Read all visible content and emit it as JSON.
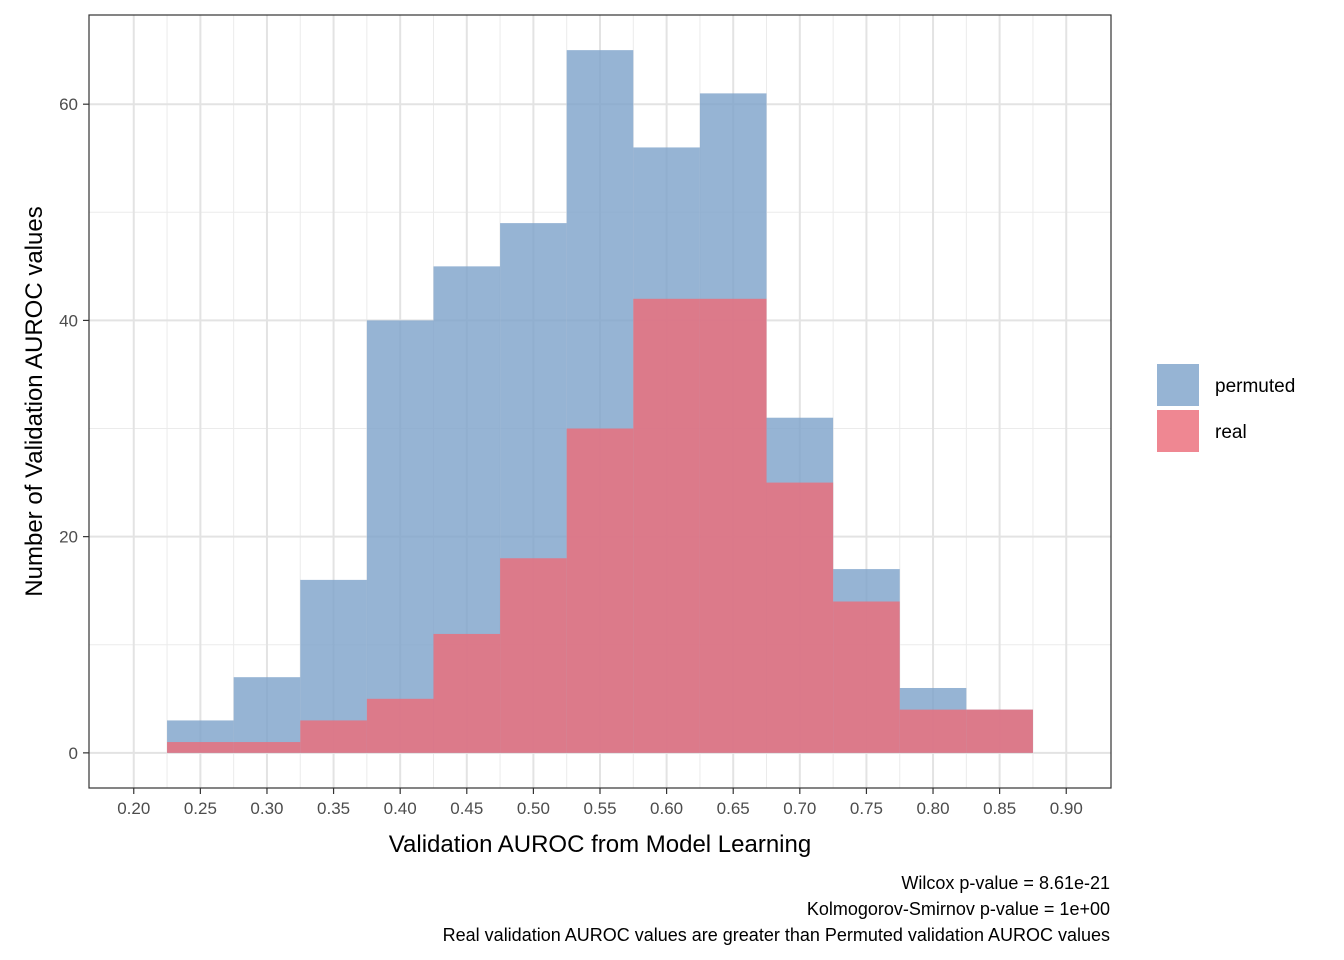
{
  "chart_data": {
    "type": "bar",
    "subtype": "overlaid-histogram",
    "bin_edges": [
      0.225,
      0.275,
      0.325,
      0.375,
      0.425,
      0.475,
      0.525,
      0.575,
      0.625,
      0.675,
      0.725,
      0.775,
      0.825,
      0.875
    ],
    "series": [
      {
        "name": "permuted",
        "color": "#7fa3cb",
        "values": [
          3,
          7,
          16,
          40,
          45,
          49,
          65,
          56,
          61,
          31,
          17,
          6,
          4
        ]
      },
      {
        "name": "real",
        "color": "#ec6d7a",
        "values": [
          1,
          1,
          3,
          5,
          11,
          18,
          30,
          42,
          42,
          25,
          14,
          4,
          4
        ]
      }
    ],
    "xlabel": "Validation AUROC from Model Learning",
    "ylabel": "Number of Validation AUROC values",
    "xlim": [
      0.2,
      0.9
    ],
    "ylim": [
      0,
      65
    ],
    "x_ticks": [
      "0.20",
      "0.25",
      "0.30",
      "0.35",
      "0.40",
      "0.45",
      "0.50",
      "0.55",
      "0.60",
      "0.65",
      "0.70",
      "0.75",
      "0.80",
      "0.85",
      "0.90"
    ],
    "y_ticks": [
      "0",
      "20",
      "40",
      "60"
    ],
    "grid": true,
    "legend_position": "right",
    "caption": [
      "Wilcox p-value = 8.61e-21",
      "Kolmogorov-Smirnov p-value = 1e+00",
      "Real validation AUROC values are greater than Permuted validation AUROC values"
    ]
  }
}
